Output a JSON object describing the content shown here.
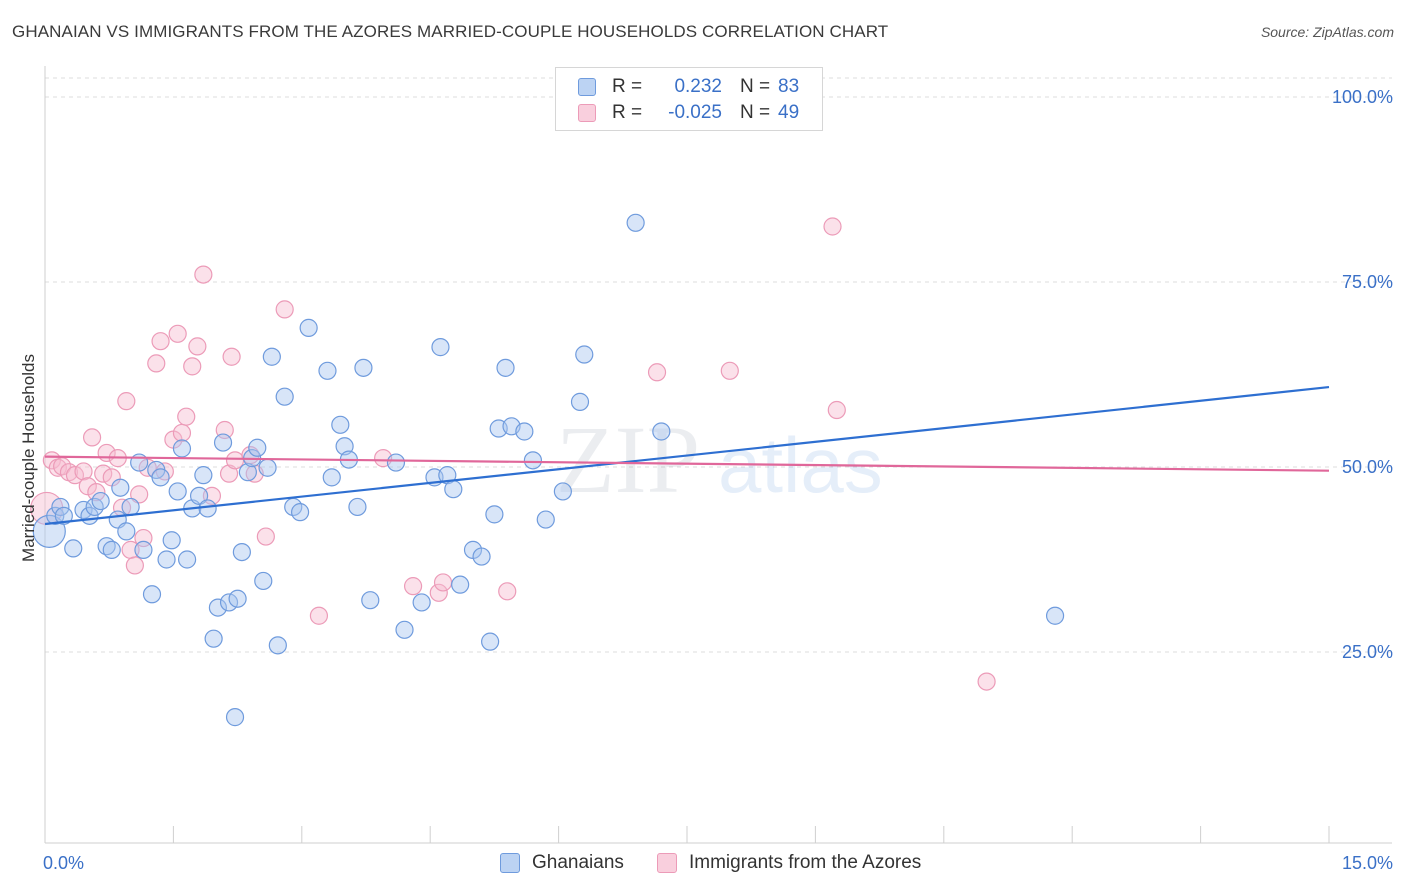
{
  "title": "GHANAIAN VS IMMIGRANTS FROM THE AZORES MARRIED-COUPLE HOUSEHOLDS CORRELATION CHART",
  "source": "Source: ZipAtlas.com",
  "watermark": {
    "zip": "ZIP",
    "atlas": "atlas"
  },
  "legend": {
    "rows": [
      {
        "r_label": "R =",
        "r_value": "0.232",
        "n_label": "N =",
        "n_value": "83"
      },
      {
        "r_label": "R =",
        "r_value": "-0.025",
        "n_label": "N =",
        "n_value": "49"
      }
    ]
  },
  "colors": {
    "blue_fill": "#a9c6ef",
    "blue_stroke": "#6f9bdd",
    "blue_line": "#2e6fd1",
    "pink_fill": "#f6bdd0",
    "pink_stroke": "#ec9bb8",
    "pink_line": "#e0679a",
    "grid": "#dcdcdc",
    "tick_label": "#3a70c7"
  },
  "chart_data": {
    "type": "scatter",
    "title": "GHANAIAN VS IMMIGRANTS FROM THE AZORES MARRIED-COUPLE HOUSEHOLDS CORRELATION CHART",
    "xlabel": "",
    "ylabel": "Married-couple Households",
    "xlim": [
      0,
      15
    ],
    "ylim": [
      0,
      105
    ],
    "x_tick_labels": [
      "0.0%",
      "15.0%"
    ],
    "y_ticks": [
      25,
      50,
      75,
      100
    ],
    "y_tick_labels": [
      "25.0%",
      "50.0%",
      "75.0%",
      "100.0%"
    ],
    "grid": true,
    "legend_position": "bottom",
    "series": [
      {
        "name": "Ghanaians",
        "color": "#6f9bdd",
        "trend": {
          "x": [
            0,
            15
          ],
          "y": [
            42.3,
            60.8
          ]
        },
        "points": [
          [
            0.05,
            41.3
          ],
          [
            0.12,
            43.4
          ],
          [
            0.18,
            44.6
          ],
          [
            0.22,
            43.4
          ],
          [
            0.33,
            39.0
          ],
          [
            0.45,
            44.2
          ],
          [
            0.52,
            43.4
          ],
          [
            0.58,
            44.6
          ],
          [
            0.65,
            45.4
          ],
          [
            0.72,
            39.3
          ],
          [
            0.78,
            38.8
          ],
          [
            0.85,
            42.9
          ],
          [
            0.88,
            47.2
          ],
          [
            0.95,
            41.3
          ],
          [
            1.0,
            44.6
          ],
          [
            1.1,
            50.6
          ],
          [
            1.15,
            38.8
          ],
          [
            1.25,
            32.8
          ],
          [
            1.3,
            49.6
          ],
          [
            1.35,
            48.6
          ],
          [
            1.42,
            37.5
          ],
          [
            1.48,
            40.1
          ],
          [
            1.55,
            46.7
          ],
          [
            1.6,
            52.5
          ],
          [
            1.66,
            37.5
          ],
          [
            1.72,
            44.4
          ],
          [
            1.8,
            46.1
          ],
          [
            1.85,
            48.9
          ],
          [
            1.9,
            44.4
          ],
          [
            1.97,
            26.8
          ],
          [
            2.02,
            31.0
          ],
          [
            2.08,
            53.3
          ],
          [
            2.15,
            31.7
          ],
          [
            2.22,
            16.2
          ],
          [
            2.25,
            32.2
          ],
          [
            2.3,
            38.5
          ],
          [
            2.37,
            49.3
          ],
          [
            2.42,
            51.2
          ],
          [
            2.48,
            52.6
          ],
          [
            2.55,
            34.6
          ],
          [
            2.6,
            49.9
          ],
          [
            2.65,
            64.9
          ],
          [
            2.72,
            25.9
          ],
          [
            2.8,
            59.5
          ],
          [
            2.9,
            44.6
          ],
          [
            2.98,
            43.9
          ],
          [
            3.08,
            68.8
          ],
          [
            3.3,
            63.0
          ],
          [
            3.35,
            48.6
          ],
          [
            3.45,
            55.7
          ],
          [
            3.5,
            52.8
          ],
          [
            3.55,
            51.0
          ],
          [
            3.65,
            44.6
          ],
          [
            3.72,
            63.4
          ],
          [
            3.8,
            32.0
          ],
          [
            4.1,
            50.6
          ],
          [
            4.2,
            28.0
          ],
          [
            4.4,
            31.7
          ],
          [
            4.55,
            48.6
          ],
          [
            4.62,
            66.2
          ],
          [
            4.7,
            48.9
          ],
          [
            4.77,
            47.0
          ],
          [
            4.85,
            34.1
          ],
          [
            5.0,
            38.8
          ],
          [
            5.1,
            37.9
          ],
          [
            5.2,
            26.4
          ],
          [
            5.25,
            43.6
          ],
          [
            5.3,
            55.2
          ],
          [
            5.38,
            63.4
          ],
          [
            5.45,
            55.5
          ],
          [
            5.6,
            54.8
          ],
          [
            5.7,
            50.9
          ],
          [
            5.85,
            42.9
          ],
          [
            6.05,
            46.7
          ],
          [
            6.25,
            58.8
          ],
          [
            6.3,
            65.2
          ],
          [
            6.9,
            83.0
          ],
          [
            7.2,
            54.8
          ],
          [
            11.8,
            29.9
          ]
        ]
      },
      {
        "name": "Immigrants from the Azores",
        "color": "#ec9bb8",
        "trend": {
          "x": [
            0,
            15
          ],
          "y": [
            51.4,
            49.5
          ]
        },
        "points": [
          [
            0.02,
            44.4
          ],
          [
            0.08,
            50.9
          ],
          [
            0.15,
            49.9
          ],
          [
            0.2,
            50.1
          ],
          [
            0.28,
            49.3
          ],
          [
            0.35,
            48.9
          ],
          [
            0.45,
            49.4
          ],
          [
            0.5,
            47.4
          ],
          [
            0.55,
            54.0
          ],
          [
            0.6,
            46.6
          ],
          [
            0.68,
            49.1
          ],
          [
            0.72,
            51.9
          ],
          [
            0.78,
            48.6
          ],
          [
            0.85,
            51.2
          ],
          [
            0.9,
            44.5
          ],
          [
            0.95,
            58.9
          ],
          [
            1.0,
            38.8
          ],
          [
            1.05,
            36.7
          ],
          [
            1.1,
            46.3
          ],
          [
            1.15,
            40.4
          ],
          [
            1.2,
            49.9
          ],
          [
            1.3,
            64.0
          ],
          [
            1.35,
            67.0
          ],
          [
            1.4,
            49.4
          ],
          [
            1.5,
            53.7
          ],
          [
            1.55,
            68.0
          ],
          [
            1.6,
            54.6
          ],
          [
            1.65,
            56.8
          ],
          [
            1.72,
            63.6
          ],
          [
            1.78,
            66.3
          ],
          [
            1.85,
            76.0
          ],
          [
            1.95,
            46.1
          ],
          [
            2.1,
            55.0
          ],
          [
            2.15,
            49.1
          ],
          [
            2.18,
            64.9
          ],
          [
            2.22,
            50.9
          ],
          [
            2.4,
            51.6
          ],
          [
            2.45,
            49.1
          ],
          [
            2.58,
            40.6
          ],
          [
            2.8,
            71.3
          ],
          [
            3.2,
            29.9
          ],
          [
            3.95,
            51.2
          ],
          [
            4.3,
            33.9
          ],
          [
            4.6,
            33.0
          ],
          [
            4.65,
            34.4
          ],
          [
            5.4,
            33.2
          ],
          [
            7.15,
            62.8
          ],
          [
            8.0,
            63.0
          ],
          [
            9.2,
            82.5
          ],
          [
            9.25,
            57.7
          ],
          [
            11.0,
            21.0
          ]
        ]
      }
    ]
  }
}
